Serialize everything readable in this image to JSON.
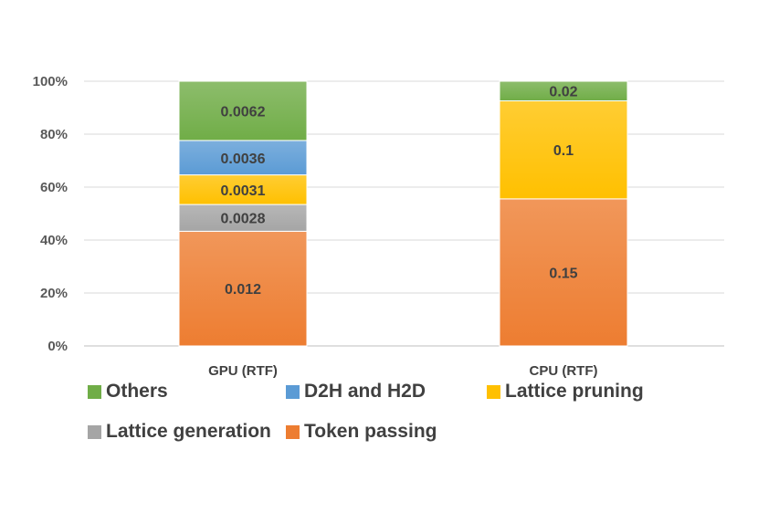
{
  "chart_data": {
    "type": "bar",
    "stacked": true,
    "normalized_percent": true,
    "categories": [
      "GPU (RTF)",
      "CPU (RTF)"
    ],
    "series": [
      {
        "name": "Token passing",
        "values": [
          0.012,
          0.15
        ],
        "color": "#ED7D31"
      },
      {
        "name": "Lattice generation",
        "values": [
          0.0028,
          null
        ],
        "color": "#A5A5A5"
      },
      {
        "name": "Lattice pruning",
        "values": [
          0.0031,
          0.1
        ],
        "color": "#FFC000"
      },
      {
        "name": "D2H and H2D",
        "values": [
          0.0036,
          null
        ],
        "color": "#5B9BD5"
      },
      {
        "name": "Others",
        "values": [
          0.0062,
          0.02
        ],
        "color": "#70AD47"
      }
    ],
    "yticks": [
      "0%",
      "20%",
      "40%",
      "60%",
      "80%",
      "100%"
    ],
    "ylim": [
      0,
      100
    ],
    "grid": true,
    "legend_order": [
      "Others",
      "D2H and H2D",
      "Lattice pruning",
      "Lattice generation",
      "Token passing"
    ],
    "legend_position": "bottom"
  }
}
